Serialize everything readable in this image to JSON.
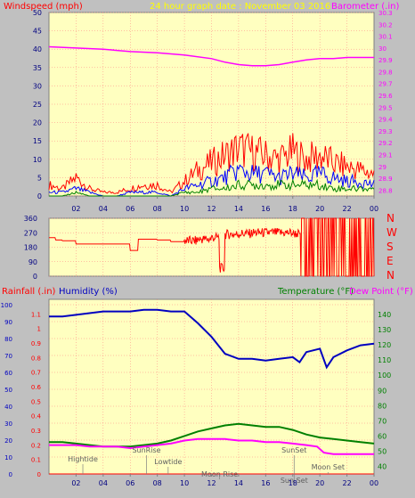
{
  "header": {
    "left_label": "Windspeed (mph)",
    "center_label": "24 hour graph date : November 03 2016",
    "right_label": "Barometer (.in)"
  },
  "time_ticks": [
    "02",
    "04",
    "06",
    "08",
    "10",
    "12",
    "14",
    "16",
    "18",
    "20",
    "22",
    "00"
  ],
  "colors": {
    "plot_bg": "#ffffc0",
    "frame": "#c0c0c0",
    "wind_gust": "#ff0000",
    "wind_avg": "#0000ff",
    "wind_low": "#008000",
    "barometer": "#ff00ff",
    "direction": "#ff0000",
    "rain": "#ff0000",
    "humidity": "#0000c0",
    "temperature": "#008000",
    "dewpoint": "#ff00ff",
    "grid": "#ff8080"
  },
  "panel_labels": {
    "rainfall": "Rainfall (.in)",
    "humidity": "Humidity (%)",
    "temperature": "Temperature (°F)",
    "dewpoint": "Dew Point (°F)"
  },
  "compass": [
    "N",
    "W",
    "S",
    "E",
    "N"
  ],
  "annotations": [
    {
      "text": "Hightide",
      "t": 2.5
    },
    {
      "text": "SunRise",
      "t": 7.2
    },
    {
      "text": "Lowtide",
      "t": 8.8
    },
    {
      "text": "Moon Rise",
      "t": 12.6
    },
    {
      "text": "SunSet",
      "t": 18.1
    },
    {
      "text": "Sun Set",
      "t": 18.1
    },
    {
      "text": "Moon Set",
      "t": 20.6
    }
  ],
  "chart_data": [
    {
      "type": "line",
      "title": "24 hour graph date : November 03 2016",
      "xlabel": "",
      "ylabel": "Windspeed (mph)",
      "y2label": "Barometer (.in)",
      "x_ticks": [
        "02",
        "04",
        "06",
        "08",
        "10",
        "12",
        "14",
        "16",
        "18",
        "20",
        "22",
        "00"
      ],
      "xlim": [
        0,
        24
      ],
      "ylim": [
        0,
        50
      ],
      "y_ticks": [
        0,
        5,
        10,
        15,
        20,
        25,
        30,
        35,
        40,
        45,
        50
      ],
      "y2lim": [
        28.75,
        30.3
      ],
      "y2_ticks": [
        "28.8",
        "28.9",
        "29",
        "29.1",
        "29.2",
        "29.3",
        "29.4",
        "29.5",
        "29.6",
        "29.7",
        "29.8",
        "29.9",
        "30",
        "30.1",
        "30.2",
        "30.3"
      ],
      "grid": true,
      "series": [
        {
          "name": "Barometer (.in)",
          "axis": "right",
          "x": [
            0,
            2,
            4,
            6,
            8,
            10,
            12,
            13,
            14,
            15,
            16,
            17,
            18,
            19,
            20,
            21,
            22,
            23,
            24
          ],
          "values": [
            30.01,
            30.0,
            29.99,
            29.97,
            29.96,
            29.94,
            29.91,
            29.88,
            29.86,
            29.85,
            29.85,
            29.86,
            29.88,
            29.9,
            29.91,
            29.91,
            29.92,
            29.92,
            29.92
          ]
        },
        {
          "x": [
            0,
            1,
            2,
            3,
            4,
            5,
            6,
            7,
            8,
            9,
            10,
            11,
            12,
            13,
            14,
            15,
            16,
            17,
            18,
            19,
            20,
            21,
            22,
            23,
            24
          ],
          "values": [
            3,
            2,
            5,
            2,
            1,
            1,
            2,
            3,
            3,
            1,
            4,
            7,
            9,
            11,
            13,
            12,
            11,
            10,
            12,
            10,
            11,
            9,
            8,
            7,
            6
          ]
        },
        {
          "x": [
            0,
            1,
            2,
            3,
            4,
            5,
            6,
            7,
            8,
            9,
            10,
            11,
            12,
            13,
            14,
            15,
            16,
            17,
            18,
            19,
            20,
            21,
            22,
            23,
            24
          ],
          "values": [
            1,
            1,
            2,
            1,
            0,
            0,
            1,
            1,
            1,
            0,
            2,
            3,
            4,
            5,
            7,
            6,
            6,
            5,
            6,
            5,
            6,
            5,
            4,
            4,
            3
          ]
        },
        {
          "x": [
            0,
            1,
            2,
            3,
            4,
            5,
            6,
            7,
            8,
            9,
            10,
            11,
            12,
            13,
            14,
            15,
            16,
            17,
            18,
            19,
            20,
            21,
            22,
            23,
            24
          ],
          "values": [
            0,
            0,
            1,
            0,
            0,
            0,
            0,
            0,
            0,
            0,
            1,
            1,
            2,
            2,
            3,
            3,
            3,
            3,
            3,
            3,
            3,
            2,
            2,
            2,
            2
          ]
        }
      ]
    },
    {
      "type": "line",
      "ylabel": "",
      "xlim": [
        0,
        24
      ],
      "ylim": [
        0,
        360
      ],
      "y_ticks": [
        0,
        90,
        180,
        270,
        360
      ],
      "grid": true,
      "series": [
        {
          "x": [
            0,
            0.5,
            1,
            2,
            3,
            4,
            5,
            6,
            6.3,
            6.6,
            7,
            8,
            9,
            10,
            11,
            12,
            12.6,
            13,
            14,
            15,
            16,
            17,
            18,
            18.6,
            19,
            20,
            21,
            22,
            23,
            24
          ],
          "values": [
            240,
            225,
            220,
            200,
            200,
            200,
            200,
            160,
            160,
            230,
            230,
            225,
            215,
            220,
            230,
            240,
            50,
            260,
            265,
            270,
            270,
            270,
            265,
            180,
            0,
            0,
            0,
            0,
            0,
            0
          ]
        }
      ]
    },
    {
      "type": "line",
      "xlim": [
        0,
        24
      ],
      "ylabel": "Rainfall (.in)",
      "ylim": [
        0,
        1.2
      ],
      "y_ticks": [
        0,
        0.1,
        0.2,
        0.3,
        0.4,
        0.5,
        0.6,
        0.7,
        0.8,
        0.9,
        1,
        1.1
      ],
      "y_left2_label": "Humidity (%)",
      "y_left2_lim": [
        0,
        100
      ],
      "y_left2_ticks": [
        0,
        10,
        20,
        30,
        40,
        50,
        60,
        70,
        80,
        90,
        100
      ],
      "y2label": "Temperature (°F)",
      "y2_dewpoint_label": "Dew Point (°F)",
      "y2lim": [
        35,
        150
      ],
      "y2_ticks": [
        40,
        50,
        60,
        70,
        80,
        90,
        100,
        110,
        120,
        130,
        140
      ],
      "grid": true,
      "series": [
        {
          "name": "Humidity (%)",
          "axis": "left2",
          "x": [
            0,
            1,
            2,
            3,
            4,
            5,
            6,
            7,
            8,
            9,
            10,
            11,
            12,
            13,
            14,
            15,
            16,
            17,
            18,
            18.5,
            19,
            20,
            20.5,
            21,
            22,
            23,
            24
          ],
          "values": [
            93,
            93,
            94,
            95,
            96,
            96,
            96,
            97,
            97,
            96,
            96,
            89,
            81,
            71,
            68,
            68,
            67,
            68,
            69,
            66,
            72,
            74,
            63,
            69,
            73,
            76,
            77
          ]
        },
        {
          "name": "Temperature (°F)",
          "axis": "right",
          "x": [
            0,
            1,
            2,
            3,
            4,
            5,
            6,
            7,
            8,
            9,
            10,
            11,
            12,
            13,
            14,
            15,
            16,
            17,
            18,
            19,
            20,
            21,
            22,
            23,
            24
          ],
          "values": [
            56,
            56,
            55,
            54,
            53,
            53,
            53,
            54,
            55,
            57,
            60,
            63,
            65,
            67,
            68,
            67,
            66,
            66,
            64,
            61,
            59,
            58,
            57,
            56,
            55
          ]
        },
        {
          "name": "Dew Point (°F)",
          "axis": "right",
          "x": [
            0,
            1,
            2,
            3,
            4,
            5,
            6,
            7,
            8,
            9,
            10,
            11,
            12,
            13,
            14,
            15,
            16,
            17,
            18,
            19,
            19.8,
            20.3,
            21,
            22,
            23,
            24
          ],
          "values": [
            54,
            54,
            54,
            53,
            53,
            53,
            52,
            53,
            54,
            55,
            57,
            58,
            58,
            58,
            57,
            57,
            56,
            56,
            55,
            54,
            53,
            49,
            48,
            48,
            48,
            48
          ]
        },
        {
          "name": "Rainfall (.in)",
          "axis": "left",
          "x": [
            0,
            24
          ],
          "values": [
            0,
            0
          ]
        }
      ]
    }
  ]
}
